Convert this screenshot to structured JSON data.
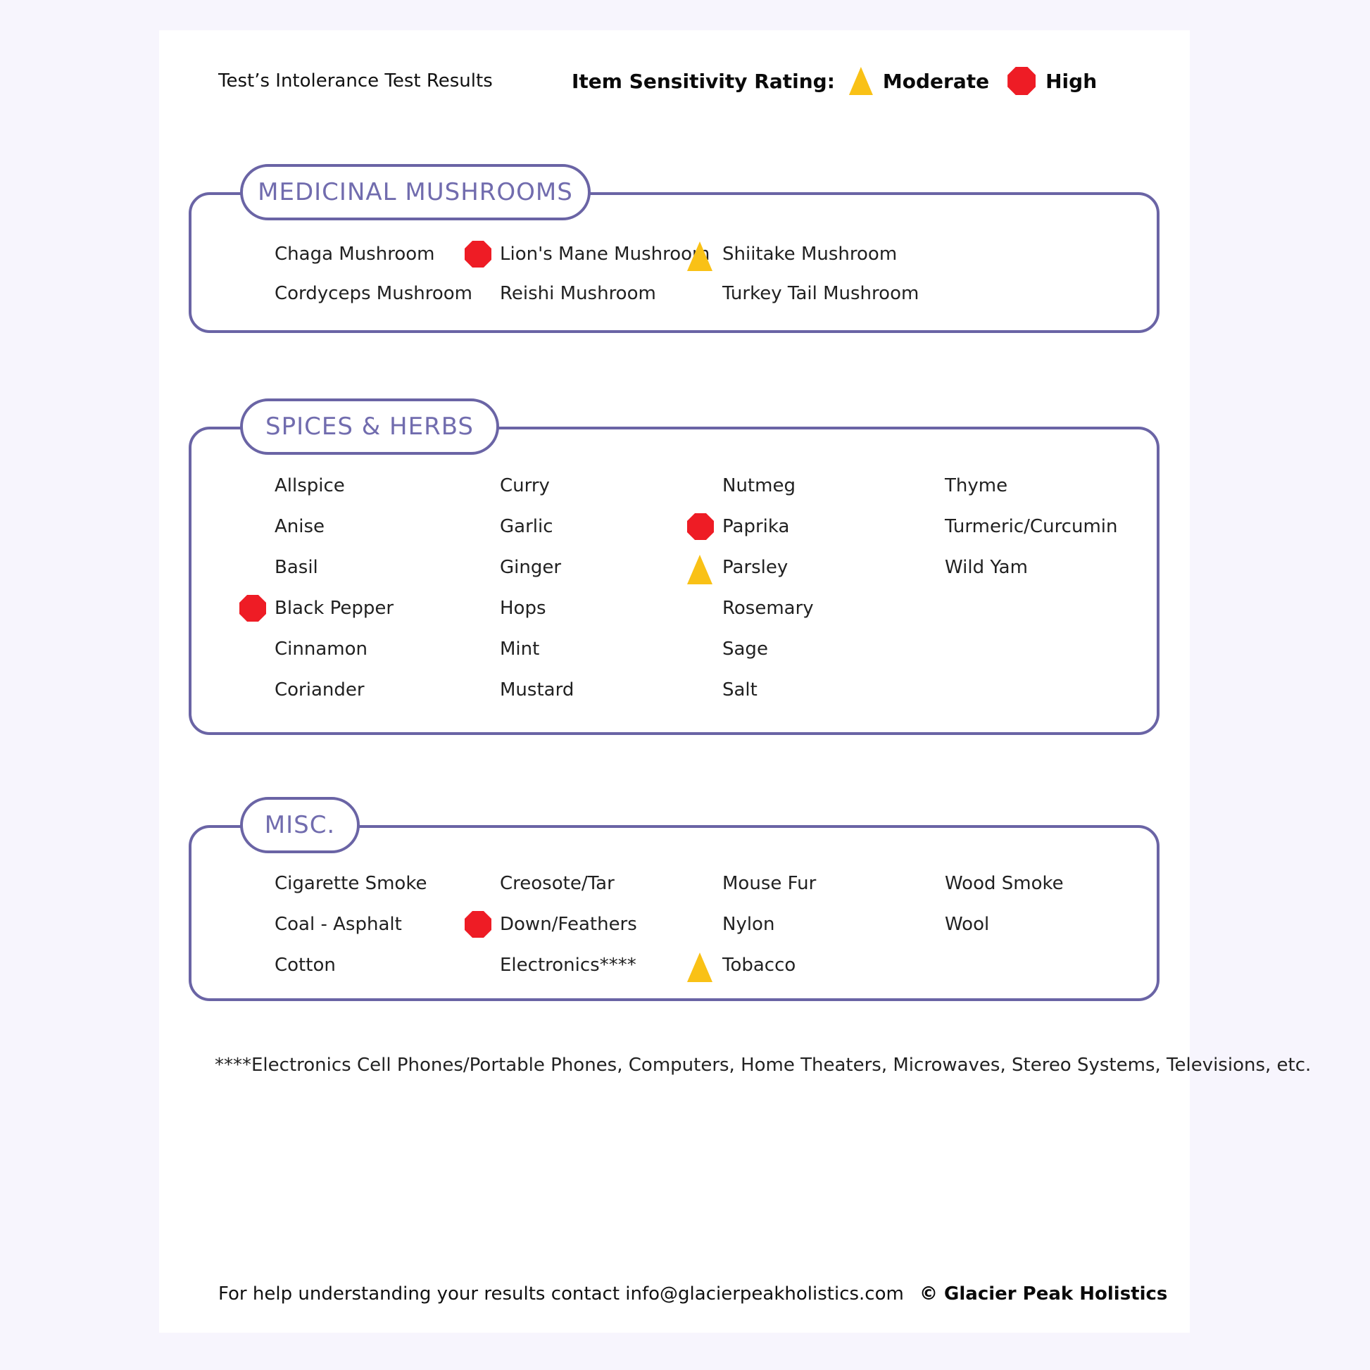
{
  "header": {
    "title": "Test’s Intolerance Test Results"
  },
  "legend": {
    "label": "Item Sensitivity Rating:",
    "moderate": "Moderate",
    "high": "High",
    "moderate_icon": "triangle-icon",
    "high_icon": "octagon-icon"
  },
  "colors": {
    "border_purple": "#6a64a5",
    "title_purple": "#716cae",
    "high_red": "#ee1c25",
    "moderate_yellow": "#f9c116",
    "canvas_background": "#f7f5fd",
    "page_background": "#ffffff"
  },
  "sections": [
    {
      "title": "MEDICINAL MUSHROOMS",
      "columns": [
        [
          {
            "label": "Chaga Mushroom",
            "rating": null
          },
          {
            "label": "Cordyceps Mushroom",
            "rating": null
          }
        ],
        [
          {
            "label": "Lion's Mane Mushroom",
            "rating": "high"
          },
          {
            "label": "Reishi Mushroom",
            "rating": null
          }
        ],
        [
          {
            "label": "Shiitake Mushroom",
            "rating": "moderate"
          },
          {
            "label": "Turkey Tail Mushroom",
            "rating": null
          }
        ]
      ]
    },
    {
      "title": "SPICES & HERBS",
      "columns": [
        [
          {
            "label": "Allspice",
            "rating": null
          },
          {
            "label": "Anise",
            "rating": null
          },
          {
            "label": "Basil",
            "rating": null
          },
          {
            "label": "Black Pepper",
            "rating": "high"
          },
          {
            "label": "Cinnamon",
            "rating": null
          },
          {
            "label": "Coriander",
            "rating": null
          }
        ],
        [
          {
            "label": "Curry",
            "rating": null
          },
          {
            "label": "Garlic",
            "rating": null
          },
          {
            "label": "Ginger",
            "rating": null
          },
          {
            "label": "Hops",
            "rating": null
          },
          {
            "label": "Mint",
            "rating": null
          },
          {
            "label": "Mustard",
            "rating": null
          }
        ],
        [
          {
            "label": "Nutmeg",
            "rating": null
          },
          {
            "label": "Paprika",
            "rating": "high"
          },
          {
            "label": "Parsley",
            "rating": "moderate"
          },
          {
            "label": "Rosemary",
            "rating": null
          },
          {
            "label": "Sage",
            "rating": null
          },
          {
            "label": "Salt",
            "rating": null
          }
        ],
        [
          {
            "label": "Thyme",
            "rating": null
          },
          {
            "label": "Turmeric/Curcumin",
            "rating": null
          },
          {
            "label": "Wild Yam",
            "rating": null
          }
        ]
      ]
    },
    {
      "title": "MISC.",
      "columns": [
        [
          {
            "label": "Cigarette Smoke",
            "rating": null
          },
          {
            "label": "Coal - Asphalt",
            "rating": null
          },
          {
            "label": "Cotton",
            "rating": null
          }
        ],
        [
          {
            "label": "Creosote/Tar",
            "rating": null
          },
          {
            "label": "Down/Feathers",
            "rating": "high"
          },
          {
            "label": "Electronics****",
            "rating": null
          }
        ],
        [
          {
            "label": "Mouse Fur",
            "rating": null
          },
          {
            "label": "Nylon",
            "rating": null
          },
          {
            "label": "Tobacco",
            "rating": "moderate"
          }
        ],
        [
          {
            "label": "Wood Smoke",
            "rating": null
          },
          {
            "label": "Wool",
            "rating": null
          }
        ]
      ]
    }
  ],
  "footnote": "****Electronics Cell Phones/Portable Phones, Computers, Home Theaters, Microwaves, Stereo Systems, Televisions, etc.",
  "footer": {
    "contact": "For help understanding your results contact info@glacierpeakholistics.com",
    "copyright": "© Glacier Peak Holistics"
  }
}
